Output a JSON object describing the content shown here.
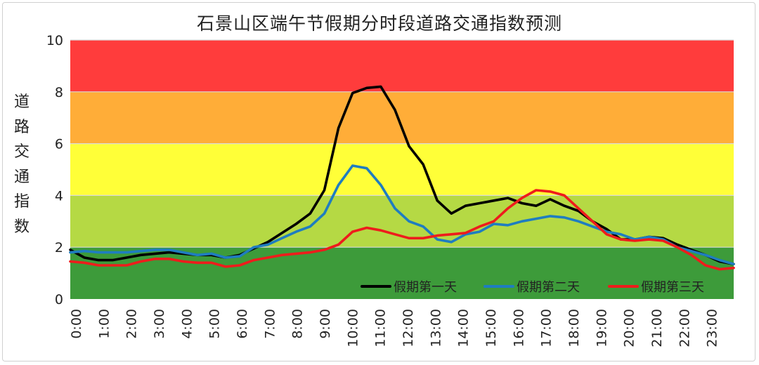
{
  "chart_data": {
    "type": "line",
    "title": "石景山区端午节假期分时段道路交通指数预测",
    "ylabel": "道路交通指数",
    "xlabel": "",
    "ylim": [
      0,
      10
    ],
    "yticks": [
      "0",
      "2",
      "4",
      "6",
      "8",
      "10"
    ],
    "x_tick_labels": [
      "0:00",
      "1:00",
      "2:00",
      "3:00",
      "4:00",
      "5:00",
      "6:00",
      "7:00",
      "8:00",
      "9:00",
      "10:00",
      "11:00",
      "12:00",
      "13:00",
      "14:00",
      "15:00",
      "16:00",
      "17:00",
      "18:00",
      "19:00",
      "20:00",
      "21:00",
      "22:00",
      "23:00"
    ],
    "grid": false,
    "legend_position": "bottom-right",
    "bands": [
      {
        "from": 0,
        "to": 2,
        "color": "#3d9b3a"
      },
      {
        "from": 2,
        "to": 4,
        "color": "#b5d944"
      },
      {
        "from": 4,
        "to": 6,
        "color": "#ffff38"
      },
      {
        "from": 6,
        "to": 8,
        "color": "#ffad38"
      },
      {
        "from": 8,
        "to": 10,
        "color": "#ff3c3c"
      }
    ],
    "x": [
      "0:00",
      "0:30",
      "1:00",
      "1:30",
      "2:00",
      "2:30",
      "3:00",
      "3:30",
      "4:00",
      "4:30",
      "5:00",
      "5:30",
      "6:00",
      "6:30",
      "7:00",
      "7:30",
      "8:00",
      "8:30",
      "9:00",
      "9:30",
      "10:00",
      "10:30",
      "11:00",
      "11:30",
      "12:00",
      "12:30",
      "13:00",
      "13:30",
      "14:00",
      "14:30",
      "15:00",
      "15:30",
      "16:00",
      "16:30",
      "17:00",
      "17:30",
      "18:00",
      "18:30",
      "19:00",
      "19:30",
      "20:00",
      "20:30",
      "21:00",
      "21:30",
      "22:00",
      "22:30",
      "23:00",
      "23:30"
    ],
    "series": [
      {
        "name": "假期第一天",
        "color": "#000000",
        "values": [
          1.9,
          1.6,
          1.5,
          1.5,
          1.6,
          1.7,
          1.75,
          1.8,
          1.75,
          1.7,
          1.7,
          1.6,
          1.7,
          1.95,
          2.2,
          2.55,
          2.9,
          3.3,
          4.2,
          6.6,
          7.95,
          8.15,
          8.2,
          7.3,
          5.9,
          5.2,
          3.8,
          3.3,
          3.6,
          3.7,
          3.8,
          3.9,
          3.7,
          3.6,
          3.85,
          3.6,
          3.4,
          3.0,
          2.7,
          2.3,
          2.3,
          2.4,
          2.35,
          2.1,
          1.9,
          1.7,
          1.45,
          1.35
        ]
      },
      {
        "name": "假期第二天",
        "color": "#1f7dc0",
        "values": [
          1.8,
          1.85,
          1.8,
          1.8,
          1.8,
          1.85,
          1.9,
          1.9,
          1.8,
          1.7,
          1.75,
          1.6,
          1.65,
          2.0,
          2.1,
          2.35,
          2.6,
          2.8,
          3.3,
          4.4,
          5.15,
          5.05,
          4.4,
          3.5,
          3.0,
          2.8,
          2.3,
          2.2,
          2.5,
          2.6,
          2.9,
          2.85,
          3.0,
          3.1,
          3.2,
          3.15,
          3.0,
          2.8,
          2.6,
          2.5,
          2.3,
          2.4,
          2.3,
          2.0,
          1.85,
          1.7,
          1.5,
          1.35
        ]
      },
      {
        "name": "假期第三天",
        "color": "#ee1c1c",
        "values": [
          1.45,
          1.4,
          1.3,
          1.3,
          1.3,
          1.45,
          1.55,
          1.55,
          1.45,
          1.4,
          1.4,
          1.25,
          1.3,
          1.5,
          1.6,
          1.7,
          1.75,
          1.8,
          1.9,
          2.1,
          2.6,
          2.75,
          2.65,
          2.5,
          2.35,
          2.35,
          2.45,
          2.5,
          2.55,
          2.8,
          3.0,
          3.5,
          3.9,
          4.2,
          4.15,
          4.0,
          3.5,
          3.0,
          2.5,
          2.3,
          2.25,
          2.3,
          2.25,
          2.0,
          1.7,
          1.3,
          1.15,
          1.2
        ]
      }
    ]
  }
}
